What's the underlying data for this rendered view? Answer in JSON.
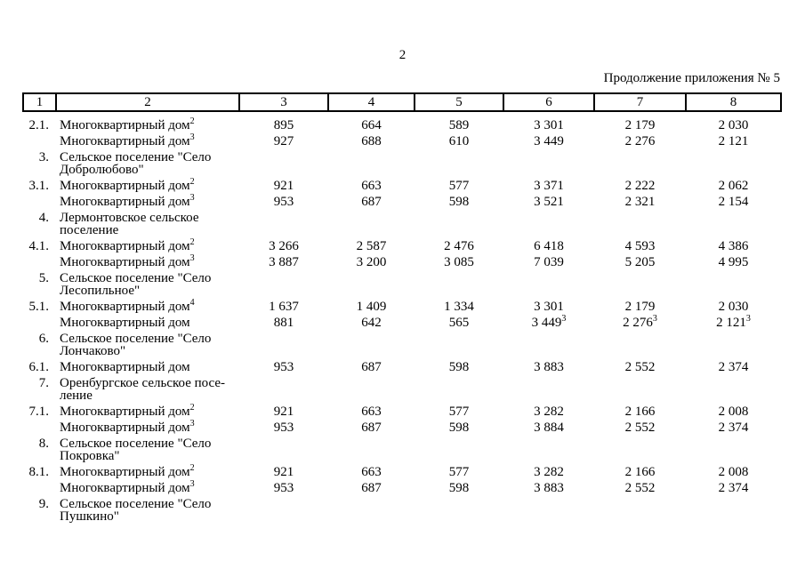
{
  "page": {
    "number": "2",
    "caption": "Продолжение приложения № 5"
  },
  "colors": {
    "text": "#000000",
    "background": "#ffffff",
    "table_border": "#000000"
  },
  "table": {
    "header": [
      "1",
      "2",
      "3",
      "4",
      "5",
      "6",
      "7",
      "8"
    ],
    "rows": [
      {
        "num": "2.1.",
        "label": "Многоквартирный дом",
        "label_sup": "2",
        "values": [
          "895",
          "664",
          "589",
          "3 301",
          "2 179",
          "2 030"
        ]
      },
      {
        "num": "",
        "label": "Многоквартирный дом",
        "label_sup": "3",
        "values": [
          "927",
          "688",
          "610",
          "3 449",
          "2 276",
          "2 121"
        ]
      },
      {
        "num": "3.",
        "label": "Сельское поселение \"Село\nДобролюбово\"",
        "values": []
      },
      {
        "num": "3.1.",
        "label": "Многоквартирный дом",
        "label_sup": "2",
        "values": [
          "921",
          "663",
          "577",
          "3 371",
          "2 222",
          "2 062"
        ]
      },
      {
        "num": "",
        "label": "Многоквартирный дом",
        "label_sup": "3",
        "values": [
          "953",
          "687",
          "598",
          "3 521",
          "2 321",
          "2 154"
        ]
      },
      {
        "num": "4.",
        "label": "Лермонтовское сельское\nпоселение",
        "values": []
      },
      {
        "num": "4.1.",
        "label": "Многоквартирный дом",
        "label_sup": "2",
        "values": [
          "3 266",
          "2 587",
          "2 476",
          "6 418",
          "4 593",
          "4 386"
        ]
      },
      {
        "num": "",
        "label": "Многоквартирный дом",
        "label_sup": "3",
        "values": [
          "3 887",
          "3 200",
          "3 085",
          "7 039",
          "5 205",
          "4 995"
        ]
      },
      {
        "num": "5.",
        "label": "Сельское поселение \"Село\nЛесопильное\"",
        "values": []
      },
      {
        "num": "5.1.",
        "label": "Многоквартирный дом",
        "label_sup": "4",
        "values": [
          "1 637",
          "1 409",
          "1 334",
          "3 301",
          "2 179",
          "2 030"
        ]
      },
      {
        "num": "",
        "label": "Многоквартирный дом",
        "values": [
          "881",
          "642",
          "565",
          [
            "3 449",
            "3"
          ],
          [
            "2 276",
            "3"
          ],
          [
            "2 121",
            "3"
          ]
        ]
      },
      {
        "num": "6.",
        "label": "Сельское поселение \"Село\nЛончаково\"",
        "values": []
      },
      {
        "num": "6.1.",
        "label": "Многоквартирный дом",
        "values": [
          "953",
          "687",
          "598",
          "3 883",
          "2 552",
          "2 374"
        ]
      },
      {
        "num": "7.",
        "label": "Оренбургское сельское посе-\nление",
        "values": []
      },
      {
        "num": "7.1.",
        "label": "Многоквартирный дом",
        "label_sup": "2",
        "values": [
          "921",
          "663",
          "577",
          "3 282",
          "2 166",
          "2 008"
        ]
      },
      {
        "num": "",
        "label": "Многоквартирный дом",
        "label_sup": "3",
        "values": [
          "953",
          "687",
          "598",
          "3 884",
          "2 552",
          "2 374"
        ]
      },
      {
        "num": "8.",
        "label": "Сельское поселение \"Село\nПокровка\"",
        "values": []
      },
      {
        "num": "8.1.",
        "label": "Многоквартирный дом",
        "label_sup": "2",
        "values": [
          "921",
          "663",
          "577",
          "3 282",
          "2 166",
          "2 008"
        ]
      },
      {
        "num": "",
        "label": "Многоквартирный дом",
        "label_sup": "3",
        "values": [
          "953",
          "687",
          "598",
          "3 883",
          "2 552",
          "2 374"
        ]
      },
      {
        "num": "9.",
        "label": "Сельское поселение \"Село\nПушкино\"",
        "values": []
      }
    ]
  }
}
